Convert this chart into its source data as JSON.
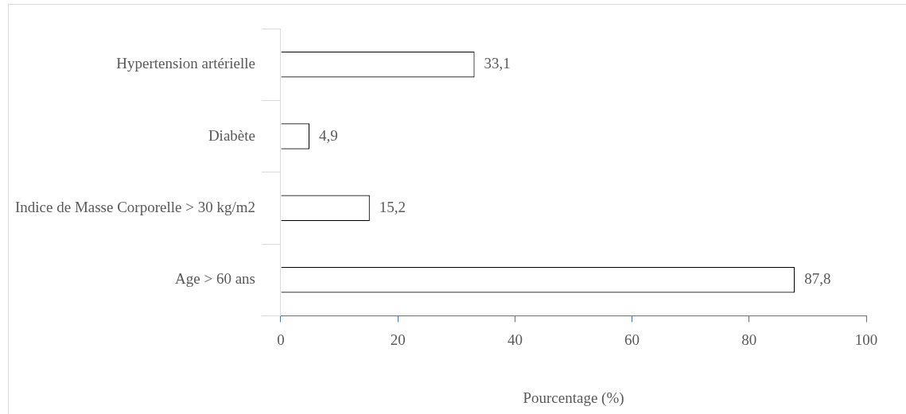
{
  "chart_data": {
    "type": "bar",
    "orientation": "horizontal",
    "xlabel": "Pourcentage (%)",
    "categories": [
      "Hypertension artérielle",
      "Diabète",
      "Indice de Masse Corporelle > 30 kg/m2",
      "Age > 60 ans"
    ],
    "values": [
      33.1,
      4.9,
      15.2,
      87.8
    ],
    "value_labels": [
      "33,1",
      "4,9",
      "15,2",
      "87,8"
    ],
    "color": "#ffffff",
    "xlim": [
      0,
      100
    ],
    "xticks": [
      0,
      20,
      40,
      60,
      80,
      100
    ],
    "grid": false,
    "legend": false
  }
}
